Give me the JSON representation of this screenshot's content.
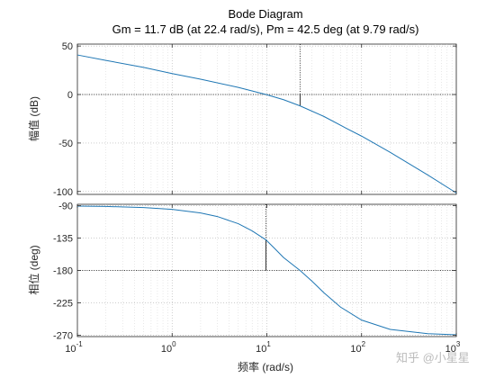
{
  "chart_data": {
    "type": "line",
    "title": "Bode Diagram",
    "subtitle": "Gm = 11.7 dB (at 22.4 rad/s),  Pm = 42.5 deg (at 9.79 rad/s)",
    "xlabel": "频率  (rad/s)",
    "xscale": "log",
    "xlim": [
      0.1,
      1000
    ],
    "x_ticks": [
      0.1,
      1,
      10,
      100,
      1000
    ],
    "x_tick_labels": [
      {
        "base": "10",
        "exp": "-1"
      },
      {
        "base": "10",
        "exp": "0"
      },
      {
        "base": "10",
        "exp": "1"
      },
      {
        "base": "10",
        "exp": "2"
      },
      {
        "base": "10",
        "exp": "3"
      }
    ],
    "grid": true,
    "panels": [
      {
        "id": "magnitude",
        "ylabel": "幅值 (dB)",
        "ylim": [
          -103,
          52
        ],
        "y_ticks": [
          50,
          0,
          -50,
          -100
        ],
        "y_tick_labels": [
          "50",
          "0",
          "-50",
          "-100"
        ],
        "series": [
          {
            "color": "#1f77b4",
            "x": [
              0.1,
              0.2,
              0.5,
              1,
              2,
              5,
              9.79,
              15,
              22.4,
              40,
              70,
              100,
              200,
              500,
              1000
            ],
            "y": [
              40.8,
              35.2,
              28.0,
              21.6,
              15.8,
              7.3,
              0.0,
              -5.3,
              -11.7,
              -22.6,
              -35.2,
              -42.9,
              -59.6,
              -83.0,
              -101.5
            ]
          }
        ],
        "reference_line_y": 0,
        "gain_margin_marker": {
          "x": 22.4,
          "from": 0,
          "to": -11.7
        }
      },
      {
        "id": "phase",
        "ylabel": "相位 (deg)",
        "ylim": [
          -272,
          -88
        ],
        "y_ticks": [
          -90,
          -135,
          -180,
          -225,
          -270
        ],
        "y_tick_labels": [
          "-90",
          "-135",
          "-180",
          "-225",
          "-270"
        ],
        "series": [
          {
            "color": "#1f77b4",
            "x": [
              0.1,
              0.2,
              0.5,
              1,
              2,
              3,
              5,
              7,
              9.79,
              12,
              15,
              22.4,
              30,
              40,
              60,
              100,
              200,
              500,
              1000
            ],
            "y": [
              -90.5,
              -91.0,
              -92.5,
              -95,
              -100,
              -105,
              -115,
              -125,
              -137.5,
              -149,
              -162,
              -180,
              -195,
              -211,
              -231,
              -249,
              -262,
              -268,
              -269.5
            ]
          }
        ],
        "reference_line_y": -180,
        "phase_margin_marker": {
          "x": 9.79,
          "from": -137.5,
          "to": -180
        }
      }
    ]
  },
  "watermark": "知乎 @小星星"
}
